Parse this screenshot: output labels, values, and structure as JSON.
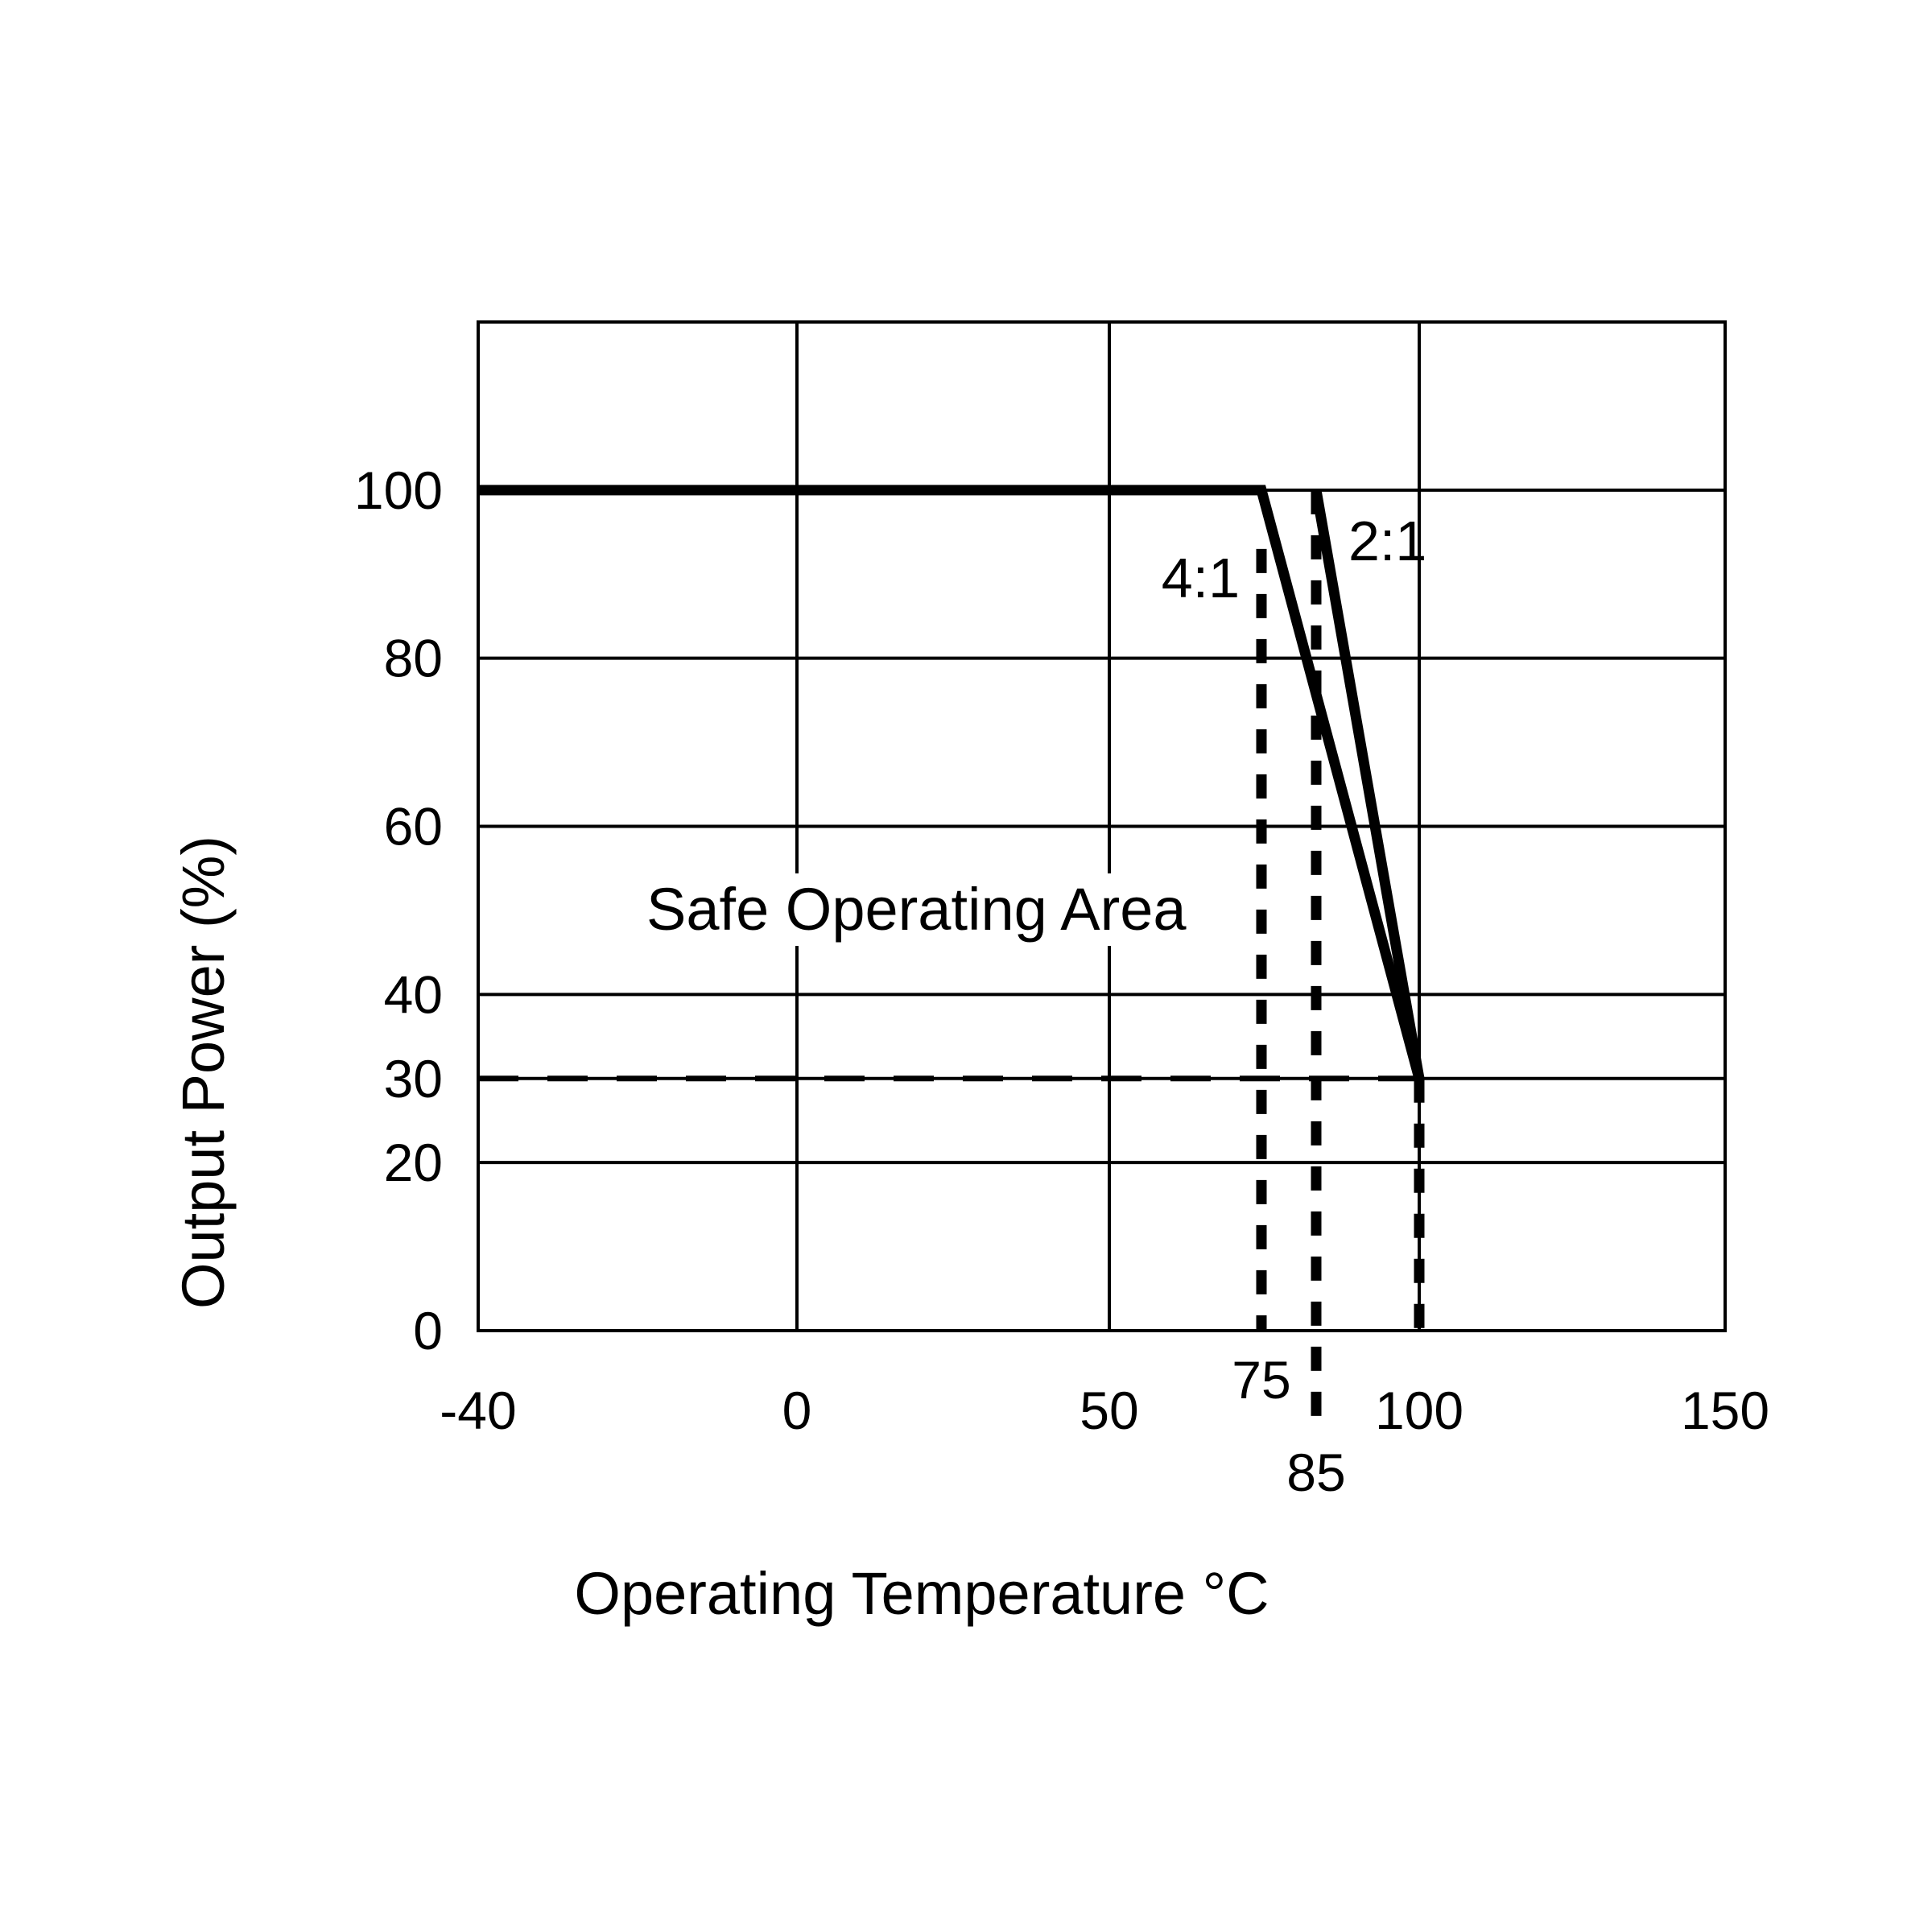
{
  "chart_data": {
    "type": "line",
    "title": "",
    "xlabel": "Operating Temperature °C",
    "ylabel": "Output Power (%)",
    "xlim": [
      -40,
      150
    ],
    "ylim": [
      0,
      120
    ],
    "x_ticks": [
      "-40",
      "0",
      "50",
      "100",
      "150"
    ],
    "x_extra_ticks": [
      "75",
      "85"
    ],
    "y_ticks": [
      "0",
      "20",
      "30",
      "40",
      "60",
      "80",
      "100"
    ],
    "grid": true,
    "series": [
      {
        "name": "4:1",
        "points": [
          [
            -40,
            100
          ],
          [
            75,
            100
          ],
          [
            100,
            30
          ]
        ]
      },
      {
        "name": "2:1",
        "points": [
          [
            85,
            100
          ],
          [
            100,
            30
          ]
        ]
      }
    ],
    "reference_lines": [
      {
        "type": "horizontal-dashed",
        "y": 30,
        "x_range": [
          -40,
          100
        ]
      },
      {
        "type": "vertical-dashed",
        "x": 75,
        "y_range": [
          0,
          93
        ]
      },
      {
        "type": "vertical-dashed",
        "x": 85,
        "y_range": [
          -11,
          100
        ]
      },
      {
        "type": "vertical-dashed",
        "x": 100,
        "y_range": [
          0,
          30
        ]
      }
    ],
    "annotations": [
      "Safe Operating Area",
      "4:1",
      "2:1"
    ],
    "line_color": "#000000"
  }
}
